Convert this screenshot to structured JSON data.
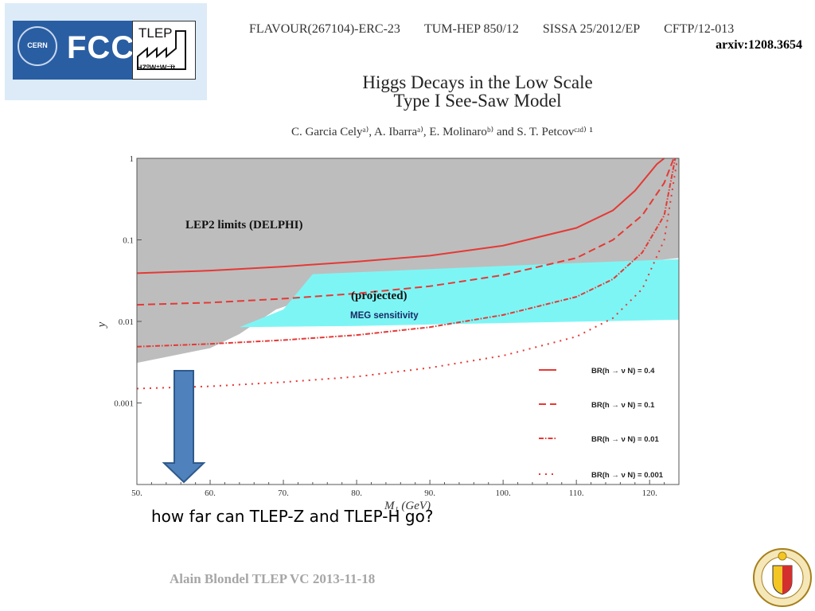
{
  "logos": {
    "cern": "CERN",
    "fcc": "FCC",
    "tlep": "TLEP",
    "tlep_sub": "HZ⁰W⁺W⁻t̅t",
    "seal_icon": "university-geneva-seal-icon"
  },
  "header": {
    "report_ids": [
      "FLAVOUR(267104)-ERC-23",
      "TUM-HEP 850/12",
      "SISSA 25/2012/EP",
      "CFTP/12-013"
    ],
    "arxiv": "arxiv:1208.3654",
    "paper_title_line1": "Higgs Decays in the Low Scale",
    "paper_title_line2": "Type I See-Saw Model",
    "authors": "C. Garcia Celyᵃ⁾, A. Ibarraᵃ⁾, E. Molinaroᵇ⁾ and S. T. Petcovᶜʴᵈ⁾ ¹"
  },
  "chart_data": {
    "type": "line",
    "xlabel": "M₁ (GeV)",
    "ylabel": "y",
    "xlim": [
      50,
      124
    ],
    "ylim": [
      0.0001,
      1
    ],
    "yscale": "log",
    "x_ticks": [
      "50.",
      "60.",
      "70.",
      "80.",
      "90.",
      "100.",
      "110.",
      "120."
    ],
    "x_tick_values": [
      50,
      60,
      70,
      80,
      90,
      100,
      110,
      120
    ],
    "y_ticks": [
      "1",
      "0.1",
      "0.01",
      "0.001"
    ],
    "y_tick_values": [
      1,
      0.1,
      0.01,
      0.001
    ],
    "colors": {
      "lep2_region": "#bdbdbd",
      "meg_region": "#7ef5f5",
      "curves": "#e53935",
      "arrow": "#4f81bd",
      "arrow_border": "#2f5a8a"
    },
    "regions": [
      {
        "name": "LEP2 limits (DELPHI)",
        "lower_boundary": [
          [
            50,
            0.0031
          ],
          [
            60,
            0.0047
          ],
          [
            64,
            0.007
          ],
          [
            69,
            0.014
          ],
          [
            74,
            0.02
          ],
          [
            90,
            0.03
          ],
          [
            110,
            0.045
          ],
          [
            120,
            0.055
          ],
          [
            124,
            0.06
          ]
        ],
        "upper_boundary": "top"
      },
      {
        "name": "MEG sensitivity",
        "label_extra": "(projected)",
        "polygon": [
          [
            64,
            0.0085
          ],
          [
            70,
            0.014
          ],
          [
            74,
            0.038
          ],
          [
            105,
            0.05
          ],
          [
            124,
            0.058
          ],
          [
            124,
            0.0105
          ],
          [
            80,
            0.0088
          ],
          [
            64,
            0.0085
          ]
        ]
      }
    ],
    "series": [
      {
        "name": "BR(h → ν N) = 0.4",
        "style": "solid",
        "points": [
          [
            50,
            0.039
          ],
          [
            60,
            0.042
          ],
          [
            70,
            0.047
          ],
          [
            80,
            0.054
          ],
          [
            90,
            0.064
          ],
          [
            100,
            0.085
          ],
          [
            110,
            0.14
          ],
          [
            115,
            0.23
          ],
          [
            118,
            0.4
          ],
          [
            121,
            0.85
          ],
          [
            122,
            1.0
          ]
        ]
      },
      {
        "name": "BR(h → ν N) = 0.1",
        "style": "dashed",
        "points": [
          [
            50,
            0.016
          ],
          [
            60,
            0.017
          ],
          [
            70,
            0.019
          ],
          [
            80,
            0.022
          ],
          [
            90,
            0.027
          ],
          [
            100,
            0.037
          ],
          [
            110,
            0.06
          ],
          [
            115,
            0.1
          ],
          [
            119,
            0.2
          ],
          [
            122,
            0.5
          ],
          [
            123.3,
            1.0
          ]
        ]
      },
      {
        "name": "BR(h → ν N) = 0.01",
        "style": "dashdot",
        "points": [
          [
            50,
            0.0049
          ],
          [
            60,
            0.0053
          ],
          [
            70,
            0.0059
          ],
          [
            80,
            0.0068
          ],
          [
            90,
            0.0085
          ],
          [
            100,
            0.012
          ],
          [
            110,
            0.02
          ],
          [
            115,
            0.033
          ],
          [
            119,
            0.07
          ],
          [
            122,
            0.2
          ],
          [
            123.5,
            1.0
          ]
        ]
      },
      {
        "name": "BR(h → ν N) = 0.001",
        "style": "dotted",
        "points": [
          [
            50,
            0.0015
          ],
          [
            60,
            0.0016
          ],
          [
            70,
            0.0018
          ],
          [
            80,
            0.0021
          ],
          [
            90,
            0.0027
          ],
          [
            100,
            0.0038
          ],
          [
            110,
            0.0065
          ],
          [
            115,
            0.011
          ],
          [
            119,
            0.025
          ],
          [
            122,
            0.1
          ],
          [
            123.8,
            1.0
          ]
        ]
      }
    ],
    "annotations": [
      "LEP2 limits (DELPHI)",
      "(projected)",
      "MEG  sensitivity"
    ],
    "legend_position": "bottom-right",
    "grid": false
  },
  "question": "how far can TLEP-Z and TLEP-H go?",
  "footer": "Alain Blondel TLEP VC 2013-11-18"
}
